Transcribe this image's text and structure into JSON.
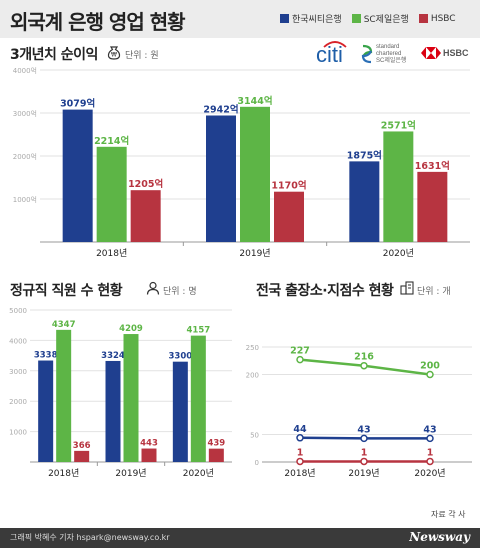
{
  "header": {
    "title": "외국계 은행 영업 현황"
  },
  "legend": [
    {
      "name": "한국씨티은행",
      "color": "#1f3f8f"
    },
    {
      "name": "SC제일은행",
      "color": "#5db546"
    },
    {
      "name": "HSBC",
      "color": "#b73440"
    }
  ],
  "logos": {
    "citi": "citi",
    "sc_line1": "standard",
    "sc_line2": "chartered",
    "sc_line3": "SC제일은행",
    "hsbc": "HSBC"
  },
  "icons": {
    "profit": "money-bag-icon",
    "staff": "person-icon",
    "branch": "building-icon"
  },
  "sections": {
    "profit": {
      "title": "3개년치 순이익",
      "unit": "단위 : 원"
    },
    "staff": {
      "title": "정규직 직원 수 현황",
      "unit": "단위 : 명"
    },
    "branch": {
      "title": "전국 출장소·지점수 현황",
      "unit": "단위 : 개"
    }
  },
  "chart_data": [
    {
      "type": "bar",
      "title": "3개년치 순이익",
      "unit": "단위 : 원",
      "categories": [
        "2018년",
        "2019년",
        "2020년"
      ],
      "series": [
        {
          "name": "한국씨티은행",
          "values": [
            3079,
            2942,
            1875
          ],
          "labels": [
            "3079억",
            "2942억",
            "1875억"
          ]
        },
        {
          "name": "SC제일은행",
          "values": [
            2214,
            3144,
            2571
          ],
          "labels": [
            "2214억",
            "3144억",
            "2571억"
          ]
        },
        {
          "name": "HSBC",
          "values": [
            1205,
            1170,
            1631
          ],
          "labels": [
            "1205억",
            "1170억",
            "1631억"
          ]
        }
      ],
      "yticks": [
        1000,
        2000,
        3000,
        4000
      ],
      "ytick_labels": [
        "1000억",
        "2000억",
        "3000억",
        "4000억"
      ],
      "ylim": [
        0,
        4000
      ]
    },
    {
      "type": "bar",
      "title": "정규직 직원 수 현황",
      "unit": "단위 : 명",
      "categories": [
        "2018년",
        "2019년",
        "2020년"
      ],
      "series": [
        {
          "name": "한국씨티은행",
          "values": [
            3338,
            3324,
            3300
          ],
          "labels": [
            "3338",
            "3324",
            "3300"
          ]
        },
        {
          "name": "SC제일은행",
          "values": [
            4347,
            4209,
            4157
          ],
          "labels": [
            "4347",
            "4209",
            "4157"
          ]
        },
        {
          "name": "HSBC",
          "values": [
            366,
            443,
            439
          ],
          "labels": [
            "366",
            "443",
            "439"
          ]
        }
      ],
      "yticks": [
        1000,
        2000,
        3000,
        4000,
        5000
      ],
      "ytick_labels": [
        "1000",
        "2000",
        "3000",
        "4000",
        "5000"
      ],
      "ylim": [
        0,
        5000
      ]
    },
    {
      "type": "line",
      "title": "전국 출장소·지점수 현황",
      "unit": "단위 : 개",
      "categories": [
        "2018년",
        "2019년",
        "2020년"
      ],
      "series": [
        {
          "name": "SC제일은행",
          "values": [
            227,
            216,
            200
          ],
          "labels": [
            "227",
            "216",
            "200"
          ]
        },
        {
          "name": "한국씨티은행",
          "values": [
            44,
            43,
            43
          ],
          "labels": [
            "44",
            "43",
            "43"
          ]
        },
        {
          "name": "HSBC",
          "values": [
            1,
            1,
            1
          ],
          "labels": [
            "1",
            "1",
            "1"
          ]
        }
      ],
      "yticks": [
        0,
        50,
        200,
        250
      ],
      "ytick_labels": [
        "0",
        "50",
        "200",
        "250"
      ],
      "ylim": [
        0,
        250
      ],
      "axis_break": [
        50,
        200
      ]
    }
  ],
  "footer": {
    "source": "자료 각 사",
    "credit": "그래픽 박혜수 기자 hspark@newsway.co.kr",
    "brand": "Newsway"
  }
}
